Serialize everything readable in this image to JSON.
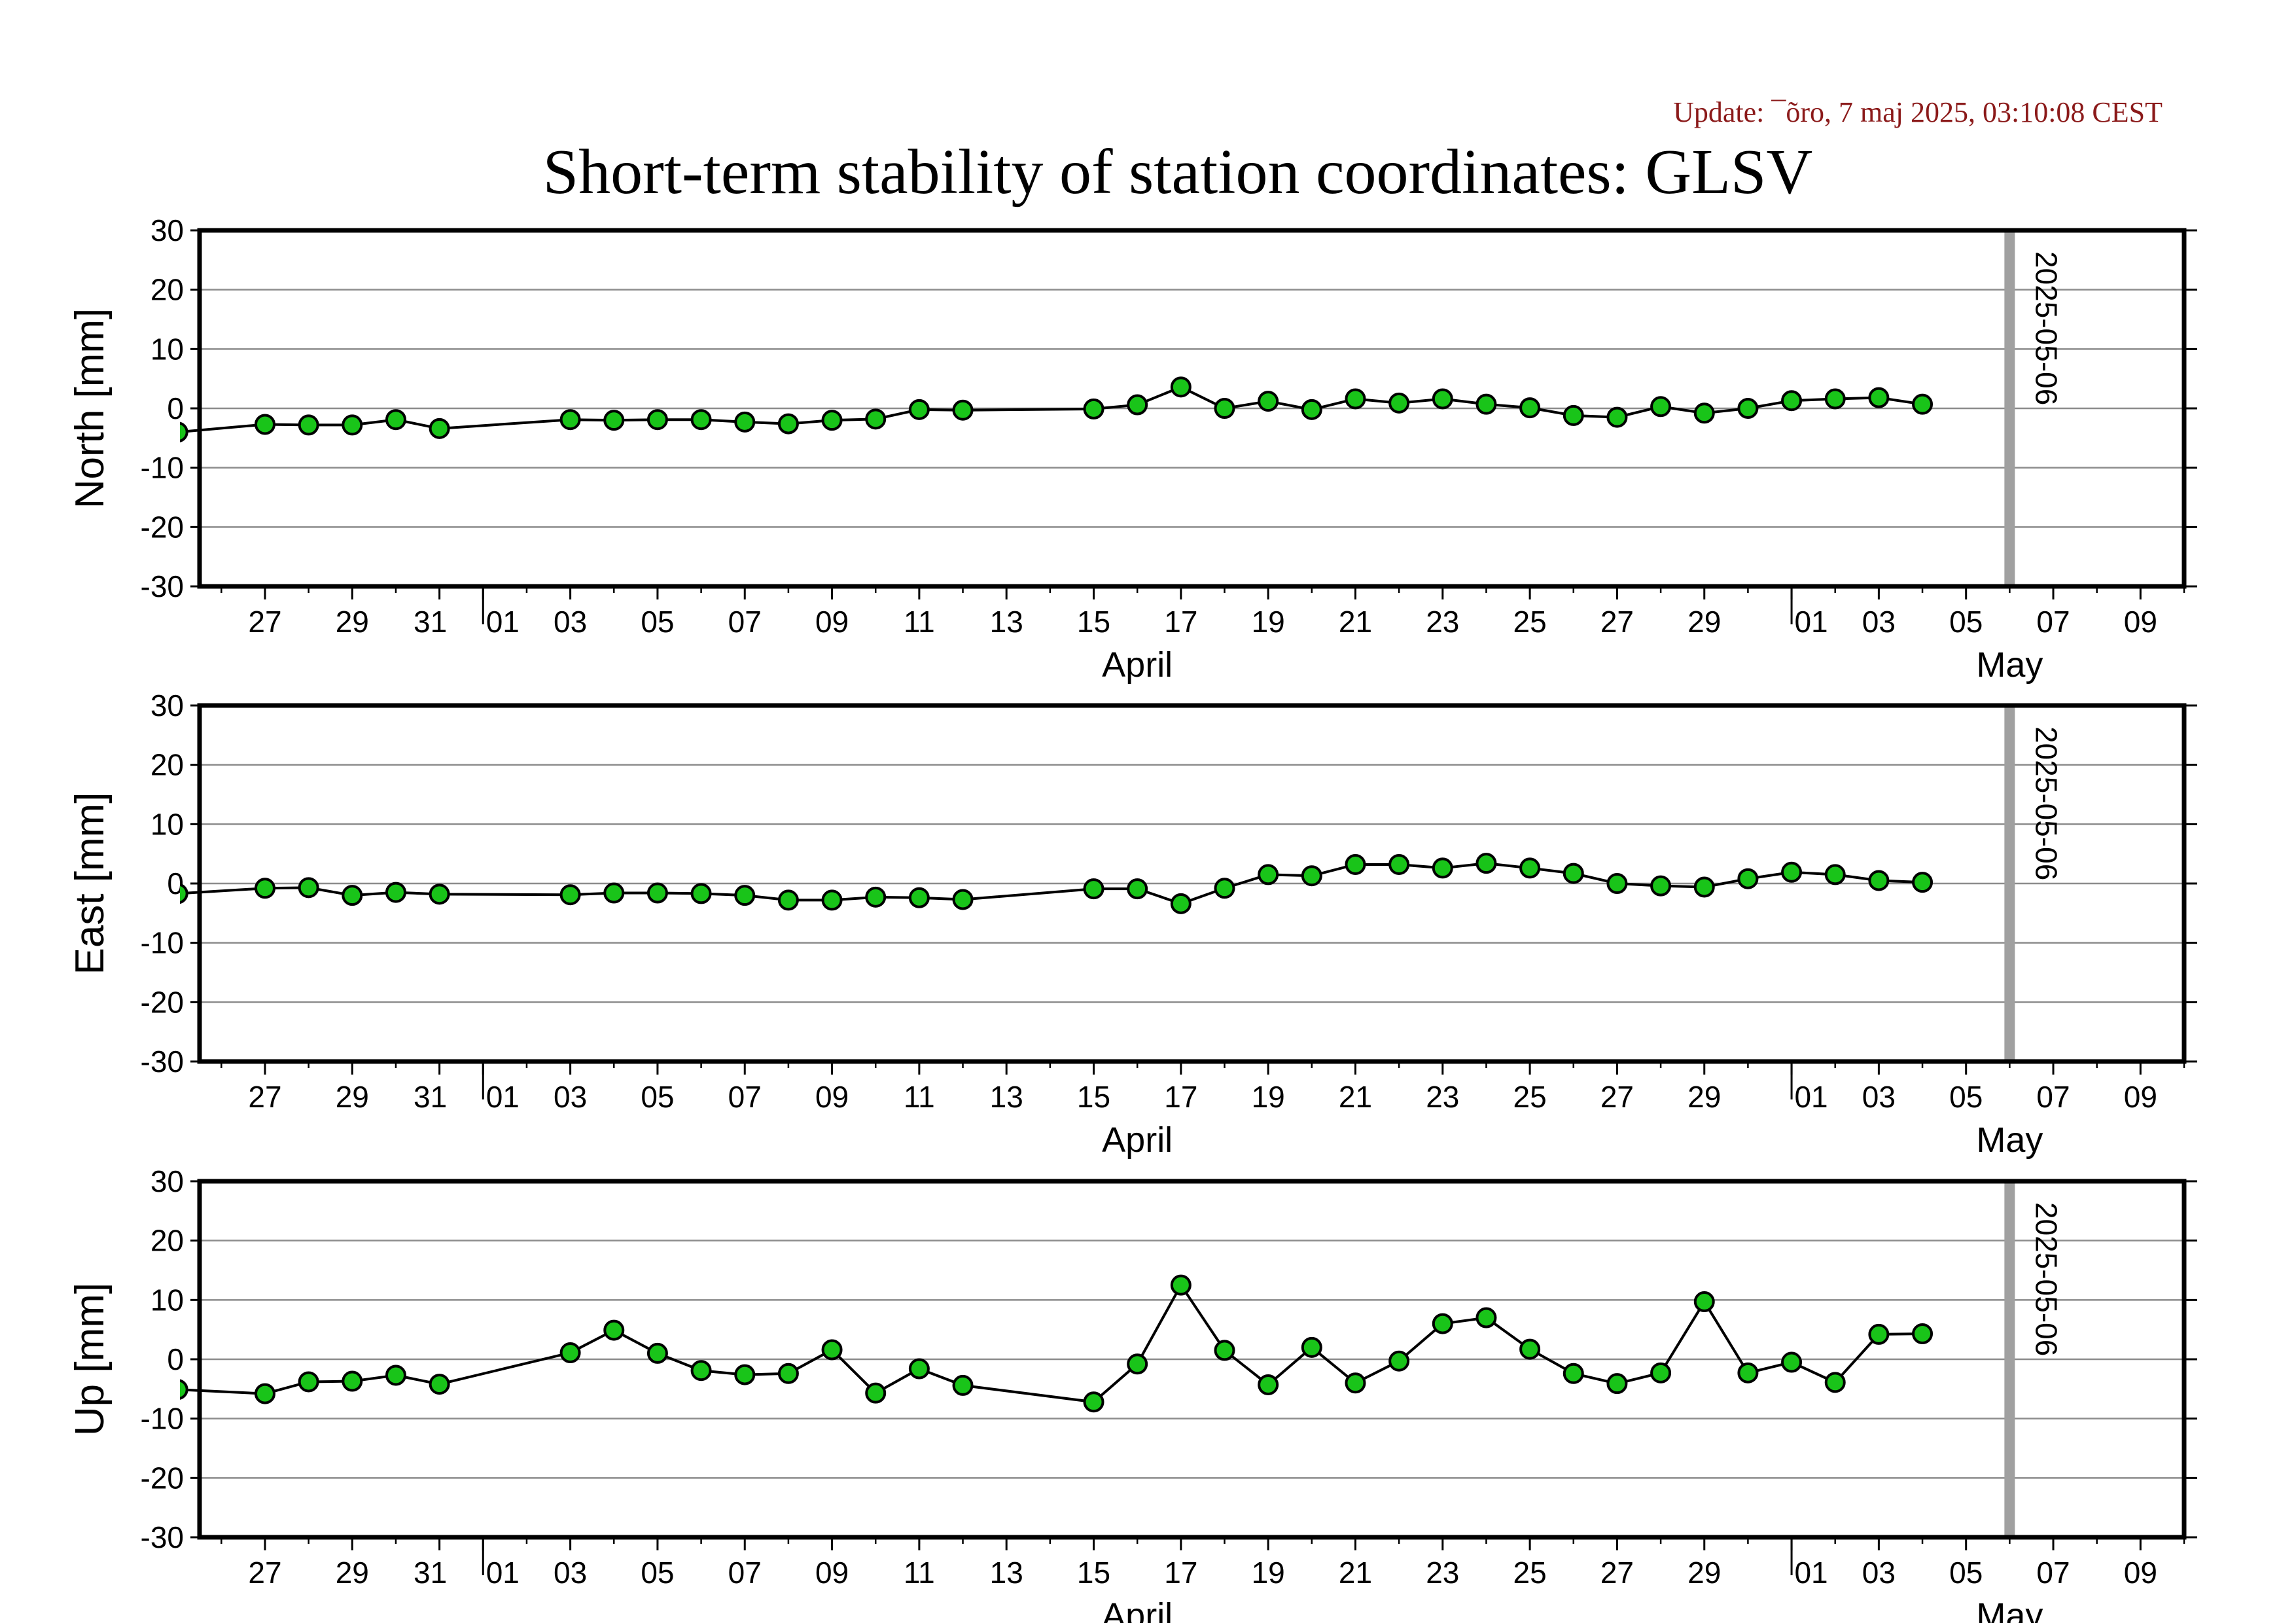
{
  "update_text": "Update: ¯õro, 7 maj 2025, 03:10:08 CEST",
  "title": "Short-term stability of station coordinates: GLSV",
  "marker_date": "2025-05-06",
  "colors": {
    "marker_fill": "#19c419",
    "marker_edge": "#000000",
    "line": "#000000",
    "grid": "#8c8c8c",
    "vline": "#a0a0a0",
    "update_text": "#8b1a1a"
  },
  "x_ticks": [
    {
      "day": -5,
      "label": "27"
    },
    {
      "day": -3,
      "label": "29"
    },
    {
      "day": -1,
      "label": "31"
    },
    {
      "day": 0,
      "label": "01"
    },
    {
      "day": 2,
      "label": "03"
    },
    {
      "day": 4,
      "label": "05"
    },
    {
      "day": 6,
      "label": "07"
    },
    {
      "day": 8,
      "label": "09"
    },
    {
      "day": 10,
      "label": "11"
    },
    {
      "day": 12,
      "label": "13"
    },
    {
      "day": 14,
      "label": "15"
    },
    {
      "day": 16,
      "label": "17"
    },
    {
      "day": 18,
      "label": "19"
    },
    {
      "day": 20,
      "label": "21"
    },
    {
      "day": 22,
      "label": "23"
    },
    {
      "day": 24,
      "label": "25"
    },
    {
      "day": 26,
      "label": "27"
    },
    {
      "day": 28,
      "label": "29"
    },
    {
      "day": 30,
      "label": "01"
    },
    {
      "day": 32,
      "label": "03"
    },
    {
      "day": 34,
      "label": "05"
    },
    {
      "day": 36,
      "label": "07"
    },
    {
      "day": 38,
      "label": "09"
    }
  ],
  "month_labels": [
    {
      "day": 15,
      "label": "April"
    },
    {
      "day": 35,
      "label": "May"
    }
  ],
  "chart_data": [
    {
      "type": "scatter",
      "ylabel": "North [mm]",
      "ylim": [
        -30,
        30
      ],
      "yticks": [
        -30,
        -20,
        -10,
        0,
        10,
        20,
        30
      ],
      "grid": true,
      "points": [
        [
          "2025-03-25",
          -4.0
        ],
        [
          "2025-03-27",
          -2.7
        ],
        [
          "2025-03-28",
          -2.8
        ],
        [
          "2025-03-29",
          -2.8
        ],
        [
          "2025-03-30",
          -1.9
        ],
        [
          "2025-03-31",
          -3.4
        ],
        [
          "2025-04-03",
          -1.9
        ],
        [
          "2025-04-04",
          -2.0
        ],
        [
          "2025-04-05",
          -1.9
        ],
        [
          "2025-04-06",
          -1.9
        ],
        [
          "2025-04-07",
          -2.3
        ],
        [
          "2025-04-08",
          -2.6
        ],
        [
          "2025-04-09",
          -2.0
        ],
        [
          "2025-04-10",
          -1.8
        ],
        [
          "2025-04-11",
          -0.2
        ],
        [
          "2025-04-12",
          -0.3
        ],
        [
          "2025-04-15",
          -0.1
        ],
        [
          "2025-04-16",
          0.6
        ],
        [
          "2025-04-17",
          3.6
        ],
        [
          "2025-04-18",
          0.0
        ],
        [
          "2025-04-19",
          1.2
        ],
        [
          "2025-04-20",
          -0.2
        ],
        [
          "2025-04-21",
          1.6
        ],
        [
          "2025-04-22",
          0.9
        ],
        [
          "2025-04-23",
          1.6
        ],
        [
          "2025-04-24",
          0.7
        ],
        [
          "2025-04-25",
          0.1
        ],
        [
          "2025-04-26",
          -1.2
        ],
        [
          "2025-04-27",
          -1.5
        ],
        [
          "2025-04-28",
          0.3
        ],
        [
          "2025-04-29",
          -0.8
        ],
        [
          "2025-04-30",
          0.0
        ],
        [
          "2025-05-01",
          1.3
        ],
        [
          "2025-05-02",
          1.6
        ],
        [
          "2025-05-03",
          1.8
        ],
        [
          "2025-05-04",
          0.7
        ]
      ]
    },
    {
      "type": "scatter",
      "ylabel": "East [mm]",
      "ylim": [
        -30,
        30
      ],
      "yticks": [
        -30,
        -20,
        -10,
        0,
        10,
        20,
        30
      ],
      "grid": true,
      "points": [
        [
          "2025-03-25",
          -1.7
        ],
        [
          "2025-03-27",
          -0.8
        ],
        [
          "2025-03-28",
          -0.7
        ],
        [
          "2025-03-29",
          -2.0
        ],
        [
          "2025-03-30",
          -1.5
        ],
        [
          "2025-03-31",
          -1.8
        ],
        [
          "2025-04-03",
          -1.9
        ],
        [
          "2025-04-04",
          -1.6
        ],
        [
          "2025-04-05",
          -1.6
        ],
        [
          "2025-04-06",
          -1.7
        ],
        [
          "2025-04-07",
          -2.0
        ],
        [
          "2025-04-08",
          -2.8
        ],
        [
          "2025-04-09",
          -2.8
        ],
        [
          "2025-04-10",
          -2.3
        ],
        [
          "2025-04-11",
          -2.4
        ],
        [
          "2025-04-12",
          -2.7
        ],
        [
          "2025-04-15",
          -0.9
        ],
        [
          "2025-04-16",
          -0.9
        ],
        [
          "2025-04-17",
          -3.4
        ],
        [
          "2025-04-18",
          -0.8
        ],
        [
          "2025-04-19",
          1.5
        ],
        [
          "2025-04-20",
          1.3
        ],
        [
          "2025-04-21",
          3.2
        ],
        [
          "2025-04-22",
          3.2
        ],
        [
          "2025-04-23",
          2.6
        ],
        [
          "2025-04-24",
          3.4
        ],
        [
          "2025-04-25",
          2.6
        ],
        [
          "2025-04-26",
          1.7
        ],
        [
          "2025-04-27",
          0.0
        ],
        [
          "2025-04-28",
          -0.4
        ],
        [
          "2025-04-29",
          -0.6
        ],
        [
          "2025-04-30",
          0.8
        ],
        [
          "2025-05-01",
          1.9
        ],
        [
          "2025-05-02",
          1.5
        ],
        [
          "2025-05-03",
          0.5
        ],
        [
          "2025-05-04",
          0.2
        ]
      ]
    },
    {
      "type": "scatter",
      "ylabel": "Up [mm]",
      "ylim": [
        -30,
        30
      ],
      "yticks": [
        -30,
        -20,
        -10,
        0,
        10,
        20,
        30
      ],
      "grid": true,
      "points": [
        [
          "2025-03-25",
          -5.1
        ],
        [
          "2025-03-27",
          -5.8
        ],
        [
          "2025-03-28",
          -3.8
        ],
        [
          "2025-03-29",
          -3.7
        ],
        [
          "2025-03-30",
          -2.7
        ],
        [
          "2025-03-31",
          -4.2
        ],
        [
          "2025-04-03",
          1.1
        ],
        [
          "2025-04-04",
          4.9
        ],
        [
          "2025-04-05",
          1.0
        ],
        [
          "2025-04-06",
          -1.9
        ],
        [
          "2025-04-07",
          -2.6
        ],
        [
          "2025-04-08",
          -2.4
        ],
        [
          "2025-04-09",
          1.6
        ],
        [
          "2025-04-10",
          -5.7
        ],
        [
          "2025-04-11",
          -1.6
        ],
        [
          "2025-04-12",
          -4.4
        ],
        [
          "2025-04-15",
          -7.2
        ],
        [
          "2025-04-16",
          -0.8
        ],
        [
          "2025-04-17",
          12.5
        ],
        [
          "2025-04-18",
          1.5
        ],
        [
          "2025-04-19",
          -4.3
        ],
        [
          "2025-04-20",
          2.0
        ],
        [
          "2025-04-21",
          -4.0
        ],
        [
          "2025-04-22",
          -0.3
        ],
        [
          "2025-04-23",
          6.0
        ],
        [
          "2025-04-24",
          7.0
        ],
        [
          "2025-04-25",
          1.7
        ],
        [
          "2025-04-26",
          -2.4
        ],
        [
          "2025-04-27",
          -4.1
        ],
        [
          "2025-04-28",
          -2.3
        ],
        [
          "2025-04-29",
          9.7
        ],
        [
          "2025-04-30",
          -2.3
        ],
        [
          "2025-05-01",
          -0.5
        ],
        [
          "2025-05-02",
          -3.9
        ],
        [
          "2025-05-03",
          4.2
        ],
        [
          "2025-05-04",
          4.3
        ]
      ]
    }
  ]
}
